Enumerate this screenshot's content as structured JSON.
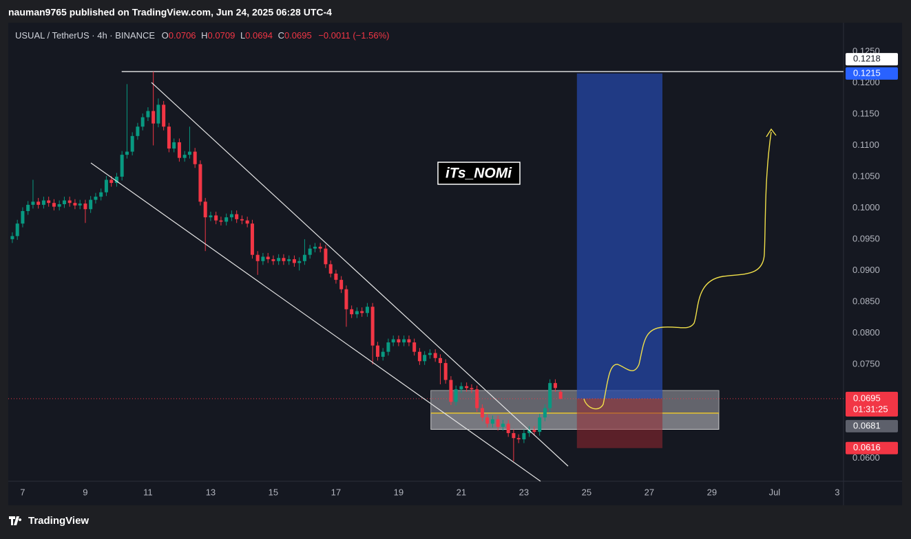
{
  "header": {
    "publisher": "nauman9765 published on TradingView.com, Jun 24, 2025 06:28 UTC-4",
    "brand": "TradingView"
  },
  "chart_data": {
    "type": "candlestick",
    "symbol": "USUAL / TetherUS · 4h · BINANCE",
    "ohlc_letters": [
      "O",
      "H",
      "L",
      "C"
    ],
    "change": "−0.0011 (−1.56%)",
    "watermark": "iTs_NOMi",
    "up_color": "#089981",
    "down_color": "#f23645",
    "grid": false,
    "xlim": [
      6.54,
      33.2
    ],
    "ylim": [
      0.0563,
      0.1294
    ],
    "xticks": [
      7,
      9,
      11,
      13,
      15,
      17,
      19,
      21,
      23,
      25,
      27,
      29,
      {
        "value": 31,
        "label": "Jul"
      },
      {
        "value": 33,
        "label": "3"
      }
    ],
    "yticks": [
      {
        "value": 0.06,
        "label": "0.0600"
      },
      {
        "value": 0.065,
        "label": "0.0650"
      },
      {
        "value": 0.07,
        "label": "0.0700"
      },
      {
        "value": 0.075,
        "label": "0.0750"
      },
      {
        "value": 0.08,
        "label": "0.0800"
      },
      {
        "value": 0.085,
        "label": "0.0850"
      },
      {
        "value": 0.09,
        "label": "0.0900"
      },
      {
        "value": 0.095,
        "label": "0.0950"
      },
      {
        "value": 0.1,
        "label": "0.1000"
      },
      {
        "value": 0.105,
        "label": "0.1050"
      },
      {
        "value": 0.11,
        "label": "0.1100"
      },
      {
        "value": 0.115,
        "label": "0.1150"
      },
      {
        "value": 0.12,
        "label": "0.1200"
      },
      {
        "value": 0.125,
        "label": "0.1250"
      }
    ],
    "x": [
      6.67,
      6.83,
      7,
      7.17,
      7.33,
      7.5,
      7.67,
      7.83,
      8,
      8.17,
      8.33,
      8.5,
      8.67,
      8.83,
      9,
      9.17,
      9.33,
      9.5,
      9.67,
      9.83,
      10,
      10.17,
      10.33,
      10.5,
      10.67,
      10.83,
      11,
      11.17,
      11.33,
      11.5,
      11.67,
      11.83,
      12,
      12.17,
      12.33,
      12.5,
      12.67,
      12.83,
      13,
      13.17,
      13.33,
      13.5,
      13.67,
      13.83,
      14,
      14.17,
      14.33,
      14.5,
      14.67,
      14.83,
      15,
      15.17,
      15.33,
      15.5,
      15.67,
      15.83,
      16,
      16.17,
      16.33,
      16.5,
      16.67,
      16.83,
      17,
      17.17,
      17.33,
      17.5,
      17.67,
      17.83,
      18,
      18.17,
      18.33,
      18.5,
      18.67,
      18.83,
      19,
      19.17,
      19.33,
      19.5,
      19.67,
      19.83,
      20,
      20.17,
      20.33,
      20.5,
      20.67,
      20.83,
      21,
      21.17,
      21.33,
      21.5,
      21.67,
      21.83,
      22,
      22.17,
      22.33,
      22.5,
      22.67,
      22.83,
      23,
      23.17,
      23.33,
      23.5,
      23.67,
      23.83,
      24,
      24.17
    ],
    "open": [
      0.095,
      0.0955,
      0.0975,
      0.0995,
      0.1005,
      0.101,
      0.1005,
      0.1012,
      0.1008,
      0.1002,
      0.1006,
      0.1012,
      0.1008,
      0.1004,
      0.1007,
      0.0998,
      0.1013,
      0.1018,
      0.1025,
      0.1045,
      0.104,
      0.105,
      0.1085,
      0.109,
      0.1115,
      0.113,
      0.1145,
      0.1155,
      0.1135,
      0.1165,
      0.113,
      0.1095,
      0.1105,
      0.108,
      0.1085,
      0.109,
      0.107,
      0.101,
      0.0985,
      0.0988,
      0.098,
      0.0978,
      0.0985,
      0.099,
      0.0982,
      0.098,
      0.0975,
      0.0925,
      0.0915,
      0.0922,
      0.0918,
      0.0915,
      0.092,
      0.0915,
      0.0918,
      0.0912,
      0.0915,
      0.0925,
      0.0935,
      0.0938,
      0.0935,
      0.091,
      0.0895,
      0.0885,
      0.087,
      0.0838,
      0.083,
      0.0835,
      0.0832,
      0.0842,
      0.078,
      0.0762,
      0.077,
      0.0785,
      0.079,
      0.0785,
      0.079,
      0.0785,
      0.077,
      0.0755,
      0.0765,
      0.0768,
      0.076,
      0.0752,
      0.0725,
      0.069,
      0.071,
      0.0715,
      0.0712,
      0.071,
      0.068,
      0.0665,
      0.0655,
      0.0662,
      0.065,
      0.0655,
      0.064,
      0.0632,
      0.063,
      0.064,
      0.0645,
      0.0642,
      0.0665,
      0.068,
      0.072,
      0.0706
    ],
    "high": [
      0.0961,
      0.0981,
      0.1001,
      0.1011,
      0.1045,
      0.1016,
      0.1018,
      0.1018,
      0.1014,
      0.1012,
      0.1018,
      0.1018,
      0.1014,
      0.1013,
      0.1013,
      0.1019,
      0.1024,
      0.1031,
      0.1051,
      0.1051,
      0.1056,
      0.1091,
      0.1198,
      0.1121,
      0.1136,
      0.1151,
      0.1161,
      0.1218,
      0.1175,
      0.1171,
      0.1136,
      0.1111,
      0.1111,
      0.1091,
      0.113,
      0.1096,
      0.1076,
      0.1016,
      0.0994,
      0.0994,
      0.0986,
      0.0991,
      0.0996,
      0.0996,
      0.0988,
      0.0986,
      0.0981,
      0.0931,
      0.0928,
      0.0928,
      0.0924,
      0.0926,
      0.0926,
      0.0924,
      0.0924,
      0.0921,
      0.095,
      0.0941,
      0.0944,
      0.0944,
      0.0941,
      0.0916,
      0.0901,
      0.0891,
      0.0876,
      0.0844,
      0.0841,
      0.0841,
      0.0848,
      0.0848,
      0.0786,
      0.0776,
      0.0791,
      0.0796,
      0.0796,
      0.0796,
      0.0796,
      0.0791,
      0.0776,
      0.0771,
      0.0774,
      0.0774,
      0.0766,
      0.0758,
      0.0731,
      0.0716,
      0.0721,
      0.0721,
      0.0718,
      0.0716,
      0.0686,
      0.0671,
      0.0668,
      0.0668,
      0.0661,
      0.0661,
      0.0646,
      0.0638,
      0.0646,
      0.0651,
      0.0651,
      0.0671,
      0.0686,
      0.0726,
      0.0726,
      0.0709
    ],
    "low": [
      0.0944,
      0.0949,
      0.0969,
      0.0989,
      0.0999,
      0.0999,
      0.0999,
      0.1002,
      0.0996,
      0.0996,
      0.1,
      0.1002,
      0.0998,
      0.0998,
      0.0976,
      0.0992,
      0.1007,
      0.1012,
      0.1019,
      0.1034,
      0.1034,
      0.1044,
      0.1079,
      0.1084,
      0.1109,
      0.1124,
      0.1139,
      0.11,
      0.1129,
      0.1124,
      0.1089,
      0.1089,
      0.1074,
      0.1074,
      0.1079,
      0.1064,
      0.1004,
      0.0931,
      0.0979,
      0.0974,
      0.0972,
      0.0972,
      0.0979,
      0.0976,
      0.0974,
      0.0969,
      0.0919,
      0.0893,
      0.0909,
      0.0912,
      0.0909,
      0.0909,
      0.0909,
      0.0909,
      0.0906,
      0.09,
      0.0909,
      0.0919,
      0.0929,
      0.0929,
      0.0904,
      0.0889,
      0.0879,
      0.0864,
      0.081,
      0.0824,
      0.0824,
      0.0826,
      0.0826,
      0.075,
      0.0756,
      0.0756,
      0.0764,
      0.0779,
      0.0779,
      0.0779,
      0.0779,
      0.0764,
      0.0749,
      0.0749,
      0.0759,
      0.0754,
      0.0718,
      0.0719,
      0.0685,
      0.0684,
      0.0704,
      0.0706,
      0.0704,
      0.0674,
      0.0659,
      0.0649,
      0.0649,
      0.0644,
      0.0644,
      0.0634,
      0.0595,
      0.0624,
      0.0624,
      0.0634,
      0.0636,
      0.0636,
      0.0659,
      0.0674,
      0.0706,
      0.0694
    ],
    "close": [
      0.0955,
      0.0975,
      0.0995,
      0.1005,
      0.101,
      0.1005,
      0.1012,
      0.1008,
      0.1002,
      0.1006,
      0.1012,
      0.1008,
      0.1004,
      0.1007,
      0.0998,
      0.1013,
      0.1018,
      0.1025,
      0.1045,
      0.104,
      0.105,
      0.1085,
      0.109,
      0.1115,
      0.113,
      0.1145,
      0.1155,
      0.1135,
      0.1165,
      0.113,
      0.1095,
      0.1105,
      0.108,
      0.1085,
      0.109,
      0.107,
      0.101,
      0.0985,
      0.0988,
      0.098,
      0.0978,
      0.0985,
      0.099,
      0.0982,
      0.098,
      0.0975,
      0.0925,
      0.0915,
      0.0922,
      0.0918,
      0.0915,
      0.092,
      0.0915,
      0.0918,
      0.0912,
      0.0915,
      0.0925,
      0.0935,
      0.0938,
      0.0935,
      0.091,
      0.0895,
      0.0885,
      0.087,
      0.0838,
      0.083,
      0.0835,
      0.0832,
      0.0842,
      0.078,
      0.0762,
      0.077,
      0.0785,
      0.079,
      0.0785,
      0.079,
      0.0785,
      0.077,
      0.0755,
      0.0765,
      0.0768,
      0.076,
      0.0752,
      0.0725,
      0.069,
      0.071,
      0.0715,
      0.0712,
      0.071,
      0.068,
      0.0665,
      0.0655,
      0.0662,
      0.065,
      0.0655,
      0.064,
      0.0632,
      0.063,
      0.064,
      0.0645,
      0.0642,
      0.0665,
      0.068,
      0.072,
      0.0712,
      0.0695
    ],
    "resistance": {
      "value": 0.1218,
      "x_start": 10.16
    },
    "position": {
      "target": 0.1215,
      "entry": 0.0695,
      "stop": 0.0616,
      "x": [
        24.69,
        27.42
      ],
      "countdown": "01:31:25"
    },
    "zone": {
      "high": 0.0708,
      "low": 0.0646,
      "line": 0.0672,
      "label": 0.0681,
      "x": [
        20.03,
        29.22
      ]
    }
  }
}
